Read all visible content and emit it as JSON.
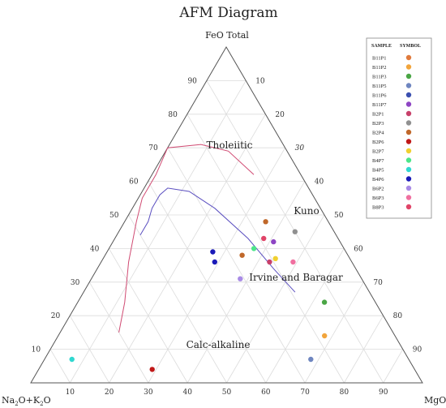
{
  "chart_data": {
    "type": "ternary-scatter",
    "title": "AFM Diagram",
    "apex_labels": {
      "top": "FeO Total",
      "left": "Na2O+K2O",
      "right": "MgO"
    },
    "apex_label_left_parts": [
      "Na",
      "2",
      "O+K",
      "2",
      "O"
    ],
    "grid": true,
    "grid_step": 10,
    "ticks": [
      "10",
      "20",
      "30",
      "40",
      "50",
      "60",
      "70",
      "80",
      "90"
    ],
    "right_edge_italic_ticks": [
      "70"
    ],
    "region_labels": [
      "Tholeiitic",
      "Kuno",
      "Irvine and Baragar",
      "Calc-alkaline"
    ],
    "boundary_lines": [
      {
        "name": "Kuno",
        "color": "#d04a72",
        "points_FAM": [
          [
            15,
            70,
            15
          ],
          [
            24,
            64,
            12
          ],
          [
            36,
            57,
            7
          ],
          [
            48,
            49,
            3
          ],
          [
            55,
            44,
            1
          ],
          [
            62,
            37,
            1
          ],
          [
            70,
            30,
            0
          ],
          [
            71,
            21,
            8
          ],
          [
            69,
            15,
            16
          ],
          [
            62,
            12,
            26
          ]
        ]
      },
      {
        "name": "Irvine and Baragar",
        "color": "#5b4fc0",
        "points_FAM": [
          [
            44,
            50,
            6
          ],
          [
            48,
            46,
            6
          ],
          [
            52,
            43,
            5
          ],
          [
            56,
            39,
            5
          ],
          [
            58,
            36,
            6
          ],
          [
            57,
            31,
            12
          ],
          [
            52,
            27,
            21
          ],
          [
            43,
            23,
            34
          ],
          [
            34,
            21,
            45
          ],
          [
            27,
            19,
            54
          ]
        ]
      }
    ],
    "legend": {
      "headers": [
        "SAMPLE",
        "SYMBOL"
      ],
      "placement": "top-right"
    },
    "series": [
      {
        "name": "B11P1",
        "color": "#e07a3c",
        "points_FAM": []
      },
      {
        "name": "B11P2",
        "color": "#f2a53c",
        "points_FAM": [
          [
            14,
            18,
            68
          ]
        ]
      },
      {
        "name": "B11P3",
        "color": "#4aa645",
        "points_FAM": [
          [
            24,
            13,
            63
          ]
        ]
      },
      {
        "name": "B11P5",
        "color": "#6f86c0",
        "points_FAM": [
          [
            7,
            25,
            68
          ]
        ]
      },
      {
        "name": "B11P6",
        "color": "#3b50b0",
        "points_FAM": []
      },
      {
        "name": "B11P7",
        "color": "#8e45c4",
        "points_FAM": [
          [
            42,
            17,
            41
          ]
        ]
      },
      {
        "name": "B2P1",
        "color": "#c8406a",
        "points_FAM": [
          [
            36,
            21,
            43
          ]
        ]
      },
      {
        "name": "B2P3",
        "color": "#909090",
        "points_FAM": [
          [
            45,
            10,
            45
          ]
        ]
      },
      {
        "name": "B2P4",
        "color": "#c0682a",
        "points_FAM": [
          [
            48,
            16,
            36
          ],
          [
            38,
            27,
            35
          ]
        ]
      },
      {
        "name": "B2P6",
        "color": "#c01818",
        "points_FAM": [
          [
            4,
            67,
            29
          ]
        ]
      },
      {
        "name": "B2P7",
        "color": "#f0d030",
        "points_FAM": [
          [
            37,
            19,
            44
          ]
        ]
      },
      {
        "name": "B4P7",
        "color": "#4ce68a",
        "points_FAM": [
          [
            40,
            23,
            37
          ]
        ]
      },
      {
        "name": "B4P5",
        "color": "#30d8d0",
        "points_FAM": [
          [
            7,
            86,
            7
          ]
        ]
      },
      {
        "name": "B4P6",
        "color": "#1a1ab8",
        "points_FAM": [
          [
            39,
            34,
            27
          ],
          [
            36,
            35,
            29
          ]
        ]
      },
      {
        "name": "B6P2",
        "color": "#a98be6",
        "points_FAM": [
          [
            31,
            31,
            38
          ]
        ]
      },
      {
        "name": "B6P3",
        "color": "#f070a0",
        "points_FAM": [
          [
            36,
            15,
            49
          ]
        ]
      },
      {
        "name": "B8P3",
        "color": "#e04468",
        "points_FAM": [
          [
            43,
            19,
            38
          ]
        ]
      }
    ]
  }
}
